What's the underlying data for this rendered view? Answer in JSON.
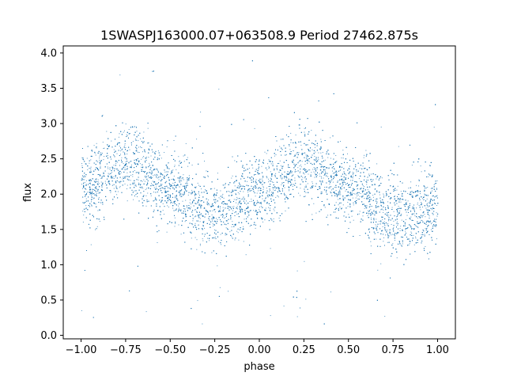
{
  "chart_data": {
    "type": "scatter",
    "title": "1SWASPJ163000.07+063508.9 Period 27462.875s",
    "xlabel": "phase",
    "ylabel": "flux",
    "xlim": [
      -1.1,
      1.1
    ],
    "ylim": [
      -0.05,
      4.1
    ],
    "xticks": [
      -1.0,
      -0.75,
      -0.5,
      -0.25,
      0.0,
      0.25,
      0.5,
      0.75,
      1.0
    ],
    "xtick_labels": [
      "−1.00",
      "−0.75",
      "−0.50",
      "−0.25",
      "0.00",
      "0.25",
      "0.50",
      "0.75",
      "1.00"
    ],
    "yticks": [
      0.0,
      0.5,
      1.0,
      1.5,
      2.0,
      2.5,
      3.0,
      3.5,
      4.0
    ],
    "ytick_labels": [
      "0.0",
      "0.5",
      "1.0",
      "1.5",
      "2.0",
      "2.5",
      "3.0",
      "3.5",
      "4.0"
    ],
    "grid": false,
    "series": [
      {
        "color": "#1f77b4",
        "marker": "point",
        "x_range": [
          -1.0,
          1.0
        ],
        "trend": {
          "phase": [
            -1.0,
            -0.75,
            -0.5,
            -0.25,
            0.0,
            0.25,
            0.5,
            0.75,
            1.0
          ],
          "flux": [
            2.1,
            2.45,
            2.1,
            1.7,
            2.05,
            2.45,
            2.1,
            1.7,
            1.8
          ]
        },
        "scatter_spread": 0.25,
        "outlier_range": [
          0.1,
          4.0
        ]
      }
    ]
  }
}
